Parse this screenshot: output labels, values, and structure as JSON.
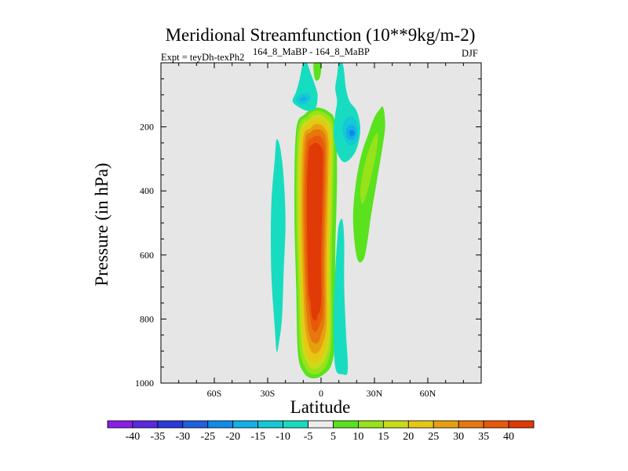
{
  "chart_data": {
    "type": "contour",
    "title": "Meridional Streamfunction (10**9kg/m-2)",
    "subtitle_left": "Expt = teyDh-texPh2",
    "subtitle_superscript": "164_8_MaBP - 164_8_MaBP",
    "subtitle_right": "DJF",
    "xlabel": "Latitude",
    "ylabel": "Pressure (in hPa)",
    "xlim": [
      -90,
      90
    ],
    "ylim": [
      0,
      1000
    ],
    "y_inverted": true,
    "x_ticks": [
      {
        "value": -60,
        "label": "60S"
      },
      {
        "value": -30,
        "label": "30S"
      },
      {
        "value": 0,
        "label": "0"
      },
      {
        "value": 30,
        "label": "30N"
      },
      {
        "value": 60,
        "label": "60N"
      }
    ],
    "y_ticks": [
      {
        "value": 200,
        "label": "200"
      },
      {
        "value": 400,
        "label": "400"
      },
      {
        "value": 600,
        "label": "600"
      },
      {
        "value": 800,
        "label": "800"
      },
      {
        "value": 1000,
        "label": "1000"
      }
    ],
    "colorbar": {
      "labels": [
        "-40",
        "-35",
        "-30",
        "-25",
        "-20",
        "-15",
        "-10",
        "-5",
        "5",
        "10",
        "15",
        "20",
        "25",
        "30",
        "35",
        "40"
      ],
      "colors": [
        "#8a1ee6",
        "#5a28e0",
        "#2a3ad8",
        "#1f60e0",
        "#0f8ae8",
        "#12b0e6",
        "#14c8d6",
        "#18dcc0",
        "#ececec",
        "#5ae21e",
        "#98e21a",
        "#c8dc1a",
        "#e6c814",
        "#e6a00f",
        "#e6780d",
        "#e85a0a",
        "#e03a06"
      ]
    },
    "background_color": "#e6e6e6",
    "features": [
      {
        "name": "main-positive-cell",
        "type": "nested",
        "levels": [
          {
            "value": 5,
            "color": "#5ae21e",
            "points": [
              [
                -13,
                905
              ],
              [
                -14,
                700
              ],
              [
                -15,
                450
              ],
              [
                -14,
                210
              ],
              [
                -9,
                160
              ],
              [
                -3,
                140
              ],
              [
                4,
                152
              ],
              [
                8,
                190
              ],
              [
                9,
                350
              ],
              [
                8,
                600
              ],
              [
                8,
                850
              ],
              [
                6,
                940
              ],
              [
                1,
                975
              ],
              [
                -5,
                985
              ],
              [
                -10,
                965
              ]
            ]
          },
          {
            "value": 10,
            "color": "#98e21a",
            "points": [
              [
                -12,
                890
              ],
              [
                -13,
                700
              ],
              [
                -14,
                450
              ],
              [
                -13,
                215
              ],
              [
                -8,
                168
              ],
              [
                -3,
                150
              ],
              [
                3,
                160
              ],
              [
                7,
                200
              ],
              [
                7,
                350
              ],
              [
                6,
                600
              ],
              [
                6,
                850
              ],
              [
                4,
                930
              ],
              [
                0,
                965
              ],
              [
                -5,
                972
              ],
              [
                -9,
                950
              ]
            ]
          },
          {
            "value": 15,
            "color": "#c8dc1a",
            "points": [
              [
                -11,
                870
              ],
              [
                -12,
                700
              ],
              [
                -13,
                450
              ],
              [
                -12,
                222
              ],
              [
                -7,
                178
              ],
              [
                -3,
                162
              ],
              [
                2,
                170
              ],
              [
                6,
                210
              ],
              [
                6,
                350
              ],
              [
                5,
                600
              ],
              [
                5,
                840
              ],
              [
                3,
                915
              ],
              [
                -1,
                950
              ],
              [
                -5,
                955
              ],
              [
                -8,
                935
              ]
            ]
          },
          {
            "value": 20,
            "color": "#e6c814",
            "points": [
              [
                -10,
                850
              ],
              [
                -11,
                700
              ],
              [
                -12,
                450
              ],
              [
                -11,
                230
              ],
              [
                -7,
                190
              ],
              [
                -3,
                175
              ],
              [
                2,
                182
              ],
              [
                5,
                222
              ],
              [
                5,
                350
              ],
              [
                4,
                600
              ],
              [
                4,
                830
              ],
              [
                2,
                900
              ],
              [
                -1,
                930
              ],
              [
                -5,
                935
              ],
              [
                -8,
                915
              ]
            ]
          },
          {
            "value": 25,
            "color": "#e6a00f",
            "points": [
              [
                -9,
                820
              ],
              [
                -10,
                700
              ],
              [
                -11,
                450
              ],
              [
                -10,
                240
              ],
              [
                -6,
                205
              ],
              [
                -3,
                192
              ],
              [
                1,
                198
              ],
              [
                4,
                235
              ],
              [
                4,
                350
              ],
              [
                3,
                600
              ],
              [
                3,
                810
              ],
              [
                1,
                875
              ],
              [
                -2,
                905
              ],
              [
                -5,
                905
              ],
              [
                -7,
                880
              ]
            ]
          },
          {
            "value": 30,
            "color": "#e6780d",
            "points": [
              [
                -8,
                790
              ],
              [
                -9,
                700
              ],
              [
                -10,
                450
              ],
              [
                -9,
                250
              ],
              [
                -6,
                218
              ],
              [
                -3,
                208
              ],
              [
                1,
                214
              ],
              [
                3,
                248
              ],
              [
                3,
                350
              ],
              [
                2,
                600
              ],
              [
                2,
                790
              ],
              [
                0,
                850
              ],
              [
                -2,
                875
              ],
              [
                -5,
                870
              ],
              [
                -7,
                840
              ]
            ]
          },
          {
            "value": 35,
            "color": "#e85a0a",
            "points": [
              [
                -7,
                760
              ],
              [
                -8,
                700
              ],
              [
                -9,
                450
              ],
              [
                -8,
                262
              ],
              [
                -5,
                235
              ],
              [
                -3,
                228
              ],
              [
                0,
                232
              ],
              [
                2,
                262
              ],
              [
                2,
                350
              ],
              [
                1,
                600
              ],
              [
                1,
                770
              ],
              [
                -1,
                820
              ],
              [
                -3,
                840
              ],
              [
                -5,
                830
              ],
              [
                -6,
                800
              ]
            ]
          },
          {
            "value": 40,
            "color": "#e03a06",
            "points": [
              [
                -6,
                740
              ],
              [
                -7,
                700
              ],
              [
                -8,
                450
              ],
              [
                -7,
                280
              ],
              [
                -5,
                256
              ],
              [
                -3,
                250
              ],
              [
                -1,
                256
              ],
              [
                1,
                280
              ],
              [
                1,
                350
              ],
              [
                0,
                600
              ],
              [
                0,
                750
              ],
              [
                -2,
                790
              ],
              [
                -3,
                805
              ],
              [
                -5,
                795
              ]
            ]
          }
        ]
      },
      {
        "name": "sh-negative-band",
        "value": -5,
        "color": "#18dcc0",
        "points": [
          [
            -26,
            300
          ],
          [
            -25,
            240
          ],
          [
            -23,
            265
          ],
          [
            -21,
            360
          ],
          [
            -20,
            500
          ],
          [
            -21,
            650
          ],
          [
            -22,
            800
          ],
          [
            -24,
            885
          ],
          [
            -25,
            900
          ],
          [
            -26,
            830
          ],
          [
            -28,
            650
          ],
          [
            -28,
            450
          ]
        ]
      },
      {
        "name": "lower-right-negative-band",
        "value": -5,
        "color": "#18dcc0",
        "points": [
          [
            10,
            505
          ],
          [
            12,
            490
          ],
          [
            13,
            560
          ],
          [
            13,
            700
          ],
          [
            14,
            840
          ],
          [
            15,
            960
          ],
          [
            12,
            972
          ],
          [
            8,
            950
          ],
          [
            7,
            800
          ],
          [
            8,
            650
          ],
          [
            9,
            560
          ]
        ]
      },
      {
        "name": "upper-right-negative-cell",
        "value": -5,
        "color": "#18dcc0",
        "points": [
          [
            10,
            0
          ],
          [
            12,
            0
          ],
          [
            13,
            30
          ],
          [
            14,
            80
          ],
          [
            16,
            120
          ],
          [
            20,
            150
          ],
          [
            22,
            200
          ],
          [
            21,
            250
          ],
          [
            18,
            290
          ],
          [
            13,
            310
          ],
          [
            9,
            280
          ],
          [
            7,
            220
          ],
          [
            8,
            160
          ],
          [
            9,
            120
          ],
          [
            8,
            80
          ],
          [
            9,
            40
          ]
        ]
      },
      {
        "name": "upper-right-negative-core",
        "value": -10,
        "color": "#14c8d6",
        "points": [
          [
            14,
            175
          ],
          [
            18,
            170
          ],
          [
            21,
            205
          ],
          [
            20,
            245
          ],
          [
            16,
            258
          ],
          [
            13,
            235
          ],
          [
            12,
            200
          ]
        ]
      },
      {
        "name": "upper-right-negative-inner",
        "value": -15,
        "color": "#12b0e6",
        "points": [
          [
            15,
            200
          ],
          [
            18,
            195
          ],
          [
            20,
            218
          ],
          [
            18,
            240
          ],
          [
            15,
            236
          ],
          [
            14,
            218
          ]
        ]
      },
      {
        "name": "upper-right-negative-center",
        "value": -20,
        "color": "#0f8ae8",
        "points": [
          [
            16,
            212
          ],
          [
            18,
            210
          ],
          [
            19,
            222
          ],
          [
            17,
            230
          ],
          [
            16,
            224
          ]
        ]
      },
      {
        "name": "top-left-negative-cell",
        "value": -5,
        "color": "#18dcc0",
        "points": [
          [
            -10,
            0
          ],
          [
            -8,
            0
          ],
          [
            -6,
            30
          ],
          [
            -4,
            60
          ],
          [
            -2,
            100
          ],
          [
            -3,
            140
          ],
          [
            -7,
            150
          ],
          [
            -12,
            140
          ],
          [
            -16,
            120
          ],
          [
            -14,
            90
          ],
          [
            -12,
            50
          ],
          [
            -11,
            20
          ]
        ]
      },
      {
        "name": "top-left-negative-core",
        "value": -10,
        "color": "#14c8d6",
        "points": [
          [
            -12,
            100
          ],
          [
            -8,
            95
          ],
          [
            -6,
            110
          ],
          [
            -8,
            125
          ],
          [
            -12,
            130
          ],
          [
            -14,
            115
          ]
        ]
      },
      {
        "name": "top-left-negative-center",
        "value": -15,
        "color": "#12b0e6",
        "points": [
          [
            -11,
            108
          ],
          [
            -9,
            106
          ],
          [
            -8,
            114
          ],
          [
            -10,
            120
          ],
          [
            -12,
            116
          ]
        ]
      },
      {
        "name": "top-center-positive-cell",
        "value": 5,
        "color": "#5ae21e",
        "points": [
          [
            -4,
            0
          ],
          [
            0,
            0
          ],
          [
            0,
            25
          ],
          [
            -1,
            50
          ],
          [
            -3,
            55
          ],
          [
            -4,
            35
          ]
        ]
      },
      {
        "name": "nh-positive-band",
        "value": 5,
        "color": "#5ae21e",
        "points": [
          [
            33,
            145
          ],
          [
            35,
            140
          ],
          [
            36,
            200
          ],
          [
            34,
            280
          ],
          [
            31,
            380
          ],
          [
            28,
            480
          ],
          [
            26,
            560
          ],
          [
            24,
            612
          ],
          [
            21,
            620
          ],
          [
            19,
            570
          ],
          [
            18,
            470
          ],
          [
            20,
            360
          ],
          [
            23,
            280
          ],
          [
            27,
            215
          ],
          [
            30,
            170
          ]
        ]
      },
      {
        "name": "nh-positive-core",
        "value": 10,
        "color": "#98e21a",
        "points": [
          [
            30,
            230
          ],
          [
            32,
            222
          ],
          [
            31,
            280
          ],
          [
            28,
            360
          ],
          [
            25,
            420
          ],
          [
            23,
            440
          ],
          [
            22,
            400
          ],
          [
            24,
            330
          ],
          [
            27,
            270
          ]
        ]
      }
    ]
  }
}
